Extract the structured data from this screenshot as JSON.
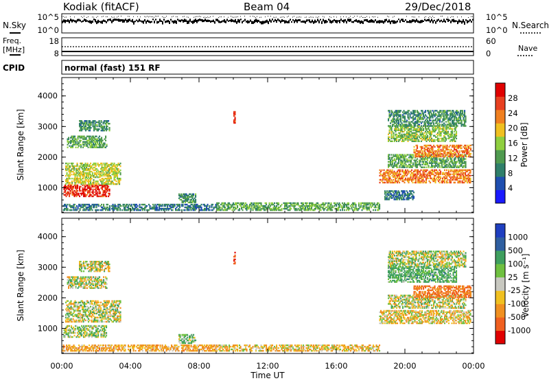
{
  "header": {
    "station": "Kodiak (fitACF)",
    "beam": "Beam 04",
    "date": "29/Dec/2018"
  },
  "panels": {
    "nsky": {
      "label": "N.Sky",
      "ticks_left": [
        "10^5",
        "10^0"
      ],
      "ticks_right": [
        "10^5",
        "10^0"
      ],
      "right_label": "N.Search"
    },
    "freq": {
      "label_1": "Freq.",
      "label_2": "[MHz]",
      "ticks_left": [
        "18",
        "8"
      ],
      "ticks_right": [
        "60",
        "0"
      ],
      "right_label": "Nave"
    },
    "cpid": {
      "label": "CPID",
      "program": "normal (fast) 151 RF"
    }
  },
  "chart_data": [
    {
      "type": "heatmap",
      "quantity": "Power",
      "colorbar_label": "Power [dB]",
      "colorbar_ticks": [
        "4",
        "8",
        "12",
        "16",
        "20",
        "24",
        "28"
      ],
      "colorbar_range": [
        0,
        30
      ],
      "ylabel": "Slant Range [km]",
      "ylim": [
        180,
        4600
      ],
      "yticks": [
        "1000",
        "2000",
        "3000",
        "4000"
      ],
      "xlabel": "Time UT",
      "xlim": [
        0,
        24
      ],
      "xticks": [
        "00:00",
        "04:00",
        "08:00",
        "12:00",
        "16:00",
        "20:00",
        "00:00"
      ],
      "echo_regions": [
        {
          "t": [
            0.1,
            2.8
          ],
          "r": [
            700,
            1100
          ],
          "value": 26
        },
        {
          "t": [
            0.2,
            3.4
          ],
          "r": [
            1100,
            1800
          ],
          "value": 16
        },
        {
          "t": [
            0.3,
            2.6
          ],
          "r": [
            2300,
            2700
          ],
          "value": 12
        },
        {
          "t": [
            1.0,
            2.8
          ],
          "r": [
            2850,
            3200
          ],
          "value": 10
        },
        {
          "t": [
            0.0,
            9.0
          ],
          "r": [
            250,
            450
          ],
          "value": 8
        },
        {
          "t": [
            6.8,
            7.8
          ],
          "r": [
            500,
            800
          ],
          "value": 10
        },
        {
          "t": [
            10.0,
            10.1
          ],
          "r": [
            3100,
            3500
          ],
          "value": 26
        },
        {
          "t": [
            9.0,
            18.5
          ],
          "r": [
            250,
            500
          ],
          "value": 12
        },
        {
          "t": [
            18.5,
            23.8
          ],
          "r": [
            1150,
            1600
          ],
          "value": 22
        },
        {
          "t": [
            19.0,
            23.5
          ],
          "r": [
            1650,
            2100
          ],
          "value": 12
        },
        {
          "t": [
            20.5,
            23.8
          ],
          "r": [
            2000,
            2400
          ],
          "value": 22
        },
        {
          "t": [
            19.0,
            23.0
          ],
          "r": [
            2500,
            3000
          ],
          "value": 14
        },
        {
          "t": [
            19.0,
            23.5
          ],
          "r": [
            3000,
            3500
          ],
          "value": 10
        },
        {
          "t": [
            18.8,
            20.5
          ],
          "r": [
            600,
            900
          ],
          "value": 8
        }
      ]
    },
    {
      "type": "heatmap",
      "quantity": "Velocity",
      "colorbar_label": "Velocity [m s⁻¹]",
      "colorbar_ticks": [
        "1000",
        "500",
        "100",
        "25",
        "-25",
        "-100",
        "-500",
        "-1000"
      ],
      "colorbar_range": [
        -1000,
        1000
      ],
      "ylabel": "Slant Range [km]",
      "ylim": [
        180,
        4600
      ],
      "yticks": [
        "1000",
        "2000",
        "3000",
        "4000"
      ],
      "xlabel": "Time UT",
      "xlim": [
        0,
        24
      ],
      "xticks": [
        "00:00",
        "04:00",
        "08:00",
        "12:00",
        "16:00",
        "20:00",
        "00:00"
      ],
      "echo_regions": [
        {
          "t": [
            0.2,
            3.4
          ],
          "r": [
            1200,
            1900
          ],
          "value": 0
        },
        {
          "t": [
            0.1,
            2.6
          ],
          "r": [
            700,
            1100
          ],
          "value": 50
        },
        {
          "t": [
            0.3,
            2.6
          ],
          "r": [
            2300,
            2700
          ],
          "value": 0
        },
        {
          "t": [
            1.0,
            2.8
          ],
          "r": [
            2850,
            3200
          ],
          "value": 0
        },
        {
          "t": [
            0.0,
            9.0
          ],
          "r": [
            250,
            450
          ],
          "value": -150
        },
        {
          "t": [
            9.0,
            18.5
          ],
          "r": [
            250,
            450
          ],
          "value": -80
        },
        {
          "t": [
            6.8,
            7.8
          ],
          "r": [
            500,
            800
          ],
          "value": 120
        },
        {
          "t": [
            10.0,
            10.1
          ],
          "r": [
            3100,
            3500
          ],
          "value": -600
        },
        {
          "t": [
            18.5,
            23.8
          ],
          "r": [
            1150,
            1600
          ],
          "value": -60
        },
        {
          "t": [
            19.0,
            23.5
          ],
          "r": [
            1650,
            2100
          ],
          "value": 0
        },
        {
          "t": [
            20.5,
            23.8
          ],
          "r": [
            2000,
            2400
          ],
          "value": -300
        },
        {
          "t": [
            19.0,
            23.0
          ],
          "r": [
            2500,
            3000
          ],
          "value": 150
        },
        {
          "t": [
            19.0,
            23.5
          ],
          "r": [
            3000,
            3500
          ],
          "value": 20
        }
      ]
    }
  ]
}
